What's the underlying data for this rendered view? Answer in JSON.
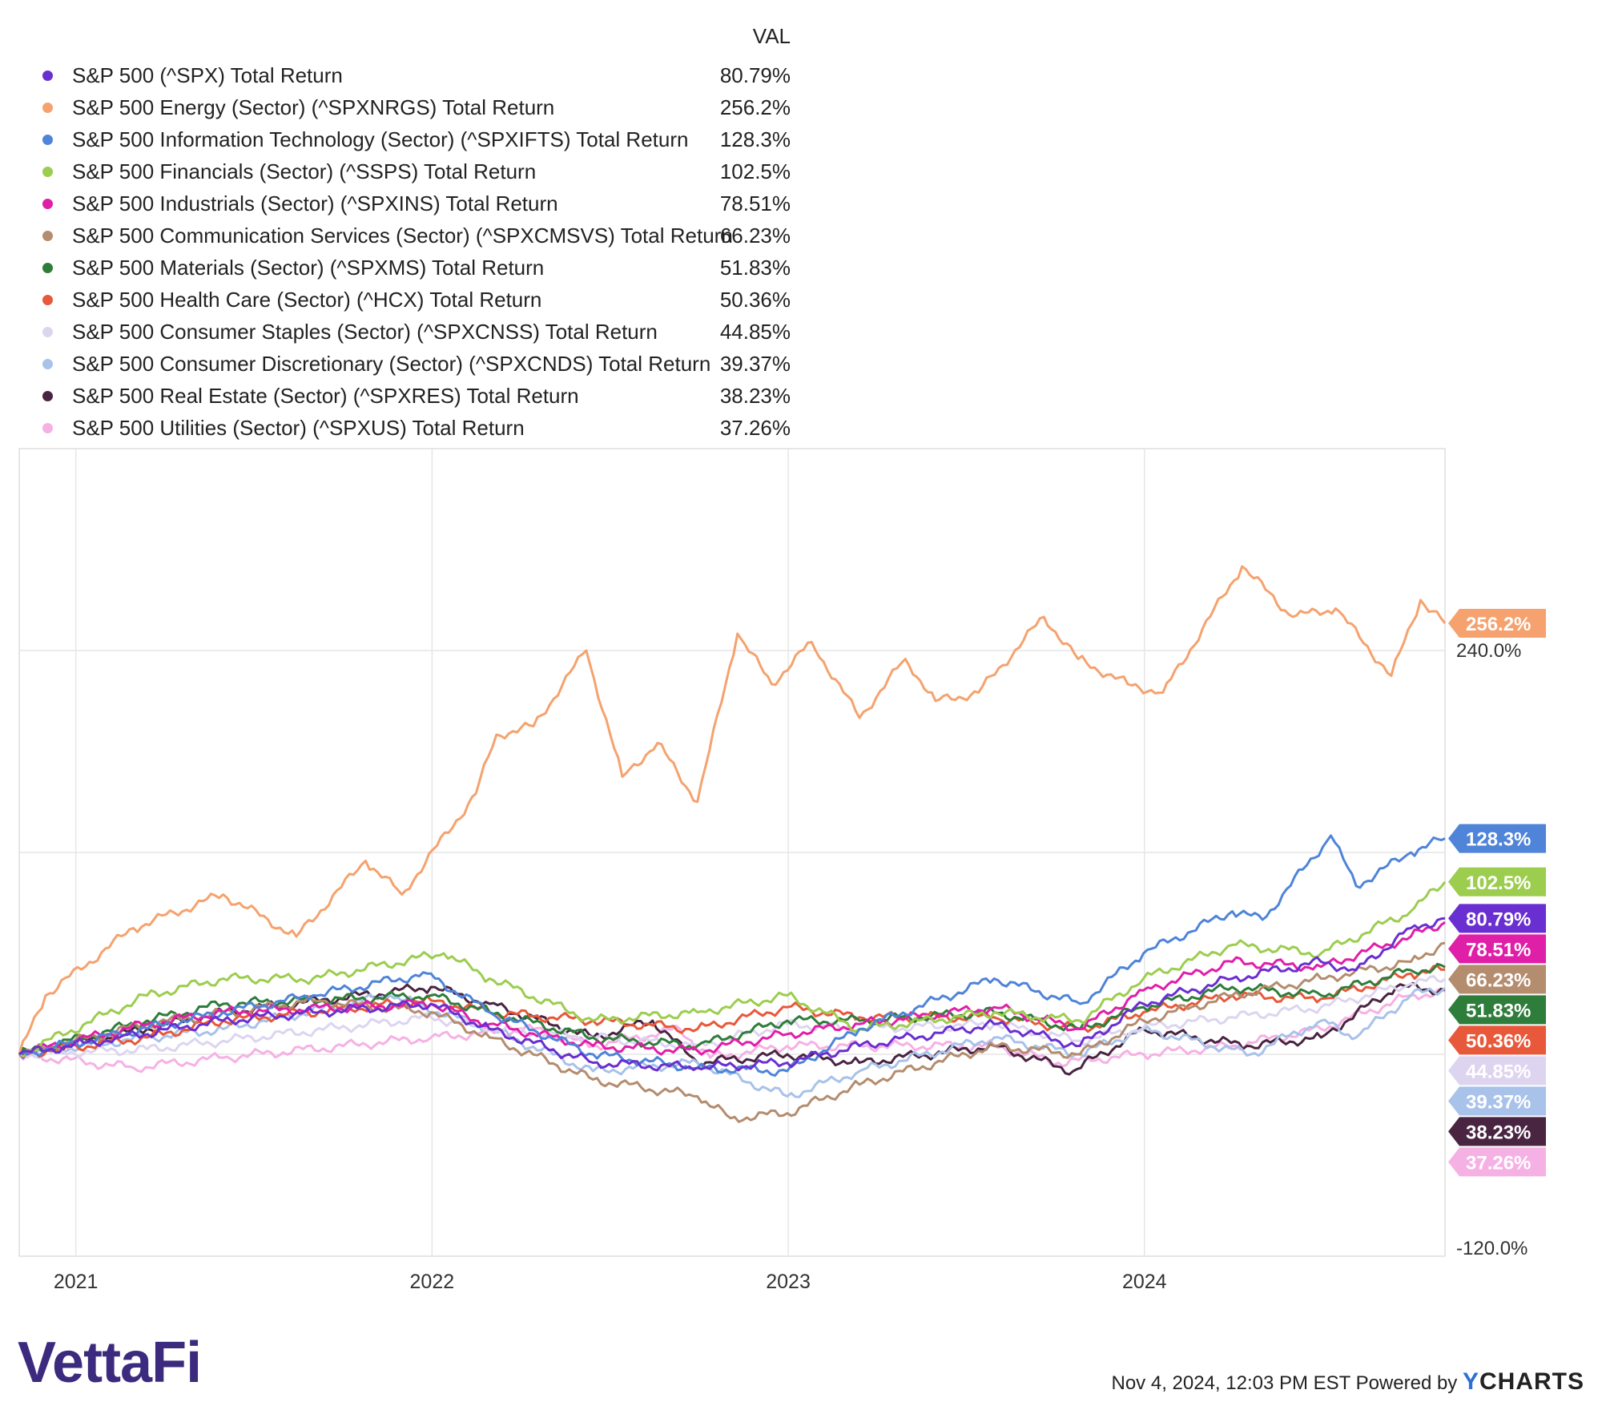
{
  "legend": {
    "header": "VAL"
  },
  "chart_data": {
    "type": "line",
    "x_ticks": [
      "2021",
      "2022",
      "2023",
      "2024"
    ],
    "y_tick_labels": [
      "240.0%",
      "-120.0%"
    ],
    "series": [
      {
        "name": "S&P 500 (^SPX) Total Return",
        "value_label": "80.79%",
        "end_value": 80.79,
        "color": "#6a2fd0",
        "label_text_color": "#ffffff",
        "points": [
          [
            "2020-11-04",
            0
          ],
          [
            "2021-02-15",
            10
          ],
          [
            "2021-06-01",
            20
          ],
          [
            "2021-09-01",
            25
          ],
          [
            "2021-12-31",
            30
          ],
          [
            "2022-03-01",
            15
          ],
          [
            "2022-06-15",
            -5
          ],
          [
            "2022-09-30",
            -8
          ],
          [
            "2022-12-31",
            -5
          ],
          [
            "2023-03-15",
            5
          ],
          [
            "2023-07-31",
            18
          ],
          [
            "2023-10-27",
            5
          ],
          [
            "2023-12-31",
            30
          ],
          [
            "2024-03-31",
            45
          ],
          [
            "2024-06-30",
            55
          ],
          [
            "2024-08-05",
            50
          ],
          [
            "2024-09-30",
            75
          ],
          [
            "2024-11-04",
            80.79
          ]
        ]
      },
      {
        "name": "S&P 500 Energy (Sector) (^SPXNRGS) Total Return",
        "value_label": "256.2%",
        "end_value": 256.2,
        "color": "#f5a26e",
        "label_text_color": "#ffffff",
        "points": [
          [
            "2020-11-04",
            0
          ],
          [
            "2020-12-01",
            35
          ],
          [
            "2021-03-01",
            75
          ],
          [
            "2021-06-01",
            95
          ],
          [
            "2021-08-15",
            70
          ],
          [
            "2021-10-25",
            115
          ],
          [
            "2021-12-01",
            95
          ],
          [
            "2022-02-15",
            155
          ],
          [
            "2022-03-08",
            190
          ],
          [
            "2022-04-15",
            195
          ],
          [
            "2022-06-08",
            240
          ],
          [
            "2022-07-15",
            165
          ],
          [
            "2022-08-20",
            185
          ],
          [
            "2022-09-30",
            150
          ],
          [
            "2022-11-10",
            250
          ],
          [
            "2022-12-15",
            220
          ],
          [
            "2023-01-25",
            245
          ],
          [
            "2023-03-15",
            200
          ],
          [
            "2023-05-01",
            235
          ],
          [
            "2023-06-01",
            210
          ],
          [
            "2023-07-15",
            215
          ],
          [
            "2023-09-20",
            260
          ],
          [
            "2023-10-25",
            235
          ],
          [
            "2023-12-15",
            220
          ],
          [
            "2024-01-20",
            215
          ],
          [
            "2024-04-10",
            290
          ],
          [
            "2024-06-01",
            260
          ],
          [
            "2024-07-15",
            265
          ],
          [
            "2024-09-10",
            225
          ],
          [
            "2024-10-10",
            270
          ],
          [
            "2024-11-04",
            256.2
          ]
        ]
      },
      {
        "name": "S&P 500 Information Technology (Sector) (^SPXIFTS) Total Return",
        "value_label": "128.3%",
        "end_value": 128.3,
        "color": "#4f84d8",
        "label_text_color": "#ffffff",
        "points": [
          [
            "2020-11-04",
            0
          ],
          [
            "2021-02-15",
            12
          ],
          [
            "2021-06-01",
            25
          ],
          [
            "2021-09-01",
            35
          ],
          [
            "2021-12-27",
            48
          ],
          [
            "2022-03-01",
            25
          ],
          [
            "2022-06-15",
            0
          ],
          [
            "2022-09-30",
            -8
          ],
          [
            "2022-12-31",
            -10
          ],
          [
            "2023-03-15",
            15
          ],
          [
            "2023-07-31",
            45
          ],
          [
            "2023-10-27",
            30
          ],
          [
            "2023-12-31",
            60
          ],
          [
            "2024-03-31",
            85
          ],
          [
            "2024-05-01",
            80
          ],
          [
            "2024-07-10",
            130
          ],
          [
            "2024-08-05",
            100
          ],
          [
            "2024-09-30",
            120
          ],
          [
            "2024-11-04",
            128.3
          ]
        ]
      },
      {
        "name": "S&P 500 Financials (Sector) (^SSPS) Total Return",
        "value_label": "102.5%",
        "end_value": 102.5,
        "color": "#9ccd4f",
        "label_text_color": "#ffffff",
        "points": [
          [
            "2020-11-04",
            0
          ],
          [
            "2021-03-15",
            35
          ],
          [
            "2021-06-01",
            45
          ],
          [
            "2021-09-01",
            45
          ],
          [
            "2022-01-13",
            60
          ],
          [
            "2022-03-01",
            45
          ],
          [
            "2022-06-15",
            20
          ],
          [
            "2022-09-30",
            25
          ],
          [
            "2022-12-31",
            35
          ],
          [
            "2023-03-15",
            15
          ],
          [
            "2023-07-31",
            25
          ],
          [
            "2023-10-27",
            20
          ],
          [
            "2023-12-31",
            45
          ],
          [
            "2024-03-31",
            65
          ],
          [
            "2024-06-30",
            60
          ],
          [
            "2024-09-30",
            85
          ],
          [
            "2024-11-04",
            102.5
          ]
        ]
      },
      {
        "name": "S&P 500 Industrials (Sector) (^SPXINS) Total Return",
        "value_label": "78.51%",
        "end_value": 78.51,
        "color": "#e01fa8",
        "label_text_color": "#ffffff",
        "points": [
          [
            "2020-11-04",
            0
          ],
          [
            "2021-03-15",
            18
          ],
          [
            "2021-06-01",
            25
          ],
          [
            "2021-12-31",
            30
          ],
          [
            "2022-03-01",
            18
          ],
          [
            "2022-06-15",
            5
          ],
          [
            "2022-09-30",
            2
          ],
          [
            "2022-12-31",
            12
          ],
          [
            "2023-03-15",
            18
          ],
          [
            "2023-07-31",
            28
          ],
          [
            "2023-10-27",
            15
          ],
          [
            "2023-12-31",
            38
          ],
          [
            "2024-03-31",
            55
          ],
          [
            "2024-06-30",
            52
          ],
          [
            "2024-09-30",
            70
          ],
          [
            "2024-11-04",
            78.51
          ]
        ]
      },
      {
        "name": "S&P 500 Communication Services (Sector) (^SPXCMSVS) Total Return",
        "value_label": "66.23%",
        "end_value": 66.23,
        "color": "#b48c6e",
        "label_text_color": "#ffffff",
        "points": [
          [
            "2020-11-04",
            0
          ],
          [
            "2021-03-15",
            18
          ],
          [
            "2021-09-01",
            32
          ],
          [
            "2021-12-31",
            25
          ],
          [
            "2022-03-01",
            10
          ],
          [
            "2022-06-15",
            -15
          ],
          [
            "2022-09-30",
            -25
          ],
          [
            "2022-11-03",
            -38
          ],
          [
            "2022-12-31",
            -35
          ],
          [
            "2023-03-15",
            -18
          ],
          [
            "2023-07-31",
            5
          ],
          [
            "2023-10-27",
            0
          ],
          [
            "2023-12-31",
            20
          ],
          [
            "2024-03-31",
            35
          ],
          [
            "2024-06-30",
            45
          ],
          [
            "2024-09-30",
            55
          ],
          [
            "2024-11-04",
            66.23
          ]
        ]
      },
      {
        "name": "S&P 500 Materials (Sector) (^SPXMS) Total Return",
        "value_label": "51.83%",
        "end_value": 51.83,
        "color": "#2e7d3a",
        "label_text_color": "#ffffff",
        "points": [
          [
            "2020-11-04",
            0
          ],
          [
            "2021-03-15",
            20
          ],
          [
            "2021-06-01",
            30
          ],
          [
            "2021-12-31",
            35
          ],
          [
            "2022-03-01",
            25
          ],
          [
            "2022-06-15",
            10
          ],
          [
            "2022-09-30",
            5
          ],
          [
            "2022-12-31",
            20
          ],
          [
            "2023-03-15",
            20
          ],
          [
            "2023-07-31",
            25
          ],
          [
            "2023-10-27",
            15
          ],
          [
            "2023-12-31",
            28
          ],
          [
            "2024-03-31",
            40
          ],
          [
            "2024-06-30",
            35
          ],
          [
            "2024-09-30",
            50
          ],
          [
            "2024-11-04",
            51.83
          ]
        ]
      },
      {
        "name": "S&P 500 Health Care (Sector) (^HCX) Total Return",
        "value_label": "50.36%",
        "end_value": 50.36,
        "color": "#e8583a",
        "label_text_color": "#ffffff",
        "points": [
          [
            "2020-11-04",
            0
          ],
          [
            "2021-03-15",
            10
          ],
          [
            "2021-06-01",
            20
          ],
          [
            "2021-12-31",
            32
          ],
          [
            "2022-03-01",
            25
          ],
          [
            "2022-06-15",
            20
          ],
          [
            "2022-09-30",
            15
          ],
          [
            "2022-12-31",
            28
          ],
          [
            "2023-03-15",
            22
          ],
          [
            "2023-07-31",
            22
          ],
          [
            "2023-10-27",
            15
          ],
          [
            "2023-12-31",
            25
          ],
          [
            "2024-03-31",
            35
          ],
          [
            "2024-06-30",
            33
          ],
          [
            "2024-09-30",
            48
          ],
          [
            "2024-11-04",
            50.36
          ]
        ]
      },
      {
        "name": "S&P 500 Consumer Staples (Sector) (^SPXCNSS) Total Return",
        "value_label": "44.85%",
        "end_value": 44.85,
        "color": "#ddd5f0",
        "label_text_color": "#ffffff",
        "points": [
          [
            "2020-11-04",
            0
          ],
          [
            "2021-03-15",
            3
          ],
          [
            "2021-06-01",
            8
          ],
          [
            "2021-12-31",
            22
          ],
          [
            "2022-03-01",
            15
          ],
          [
            "2022-06-15",
            10
          ],
          [
            "2022-09-30",
            5
          ],
          [
            "2022-12-31",
            18
          ],
          [
            "2023-03-15",
            15
          ],
          [
            "2023-07-31",
            18
          ],
          [
            "2023-10-27",
            8
          ],
          [
            "2023-12-31",
            16
          ],
          [
            "2024-03-31",
            22
          ],
          [
            "2024-06-30",
            28
          ],
          [
            "2024-09-30",
            42
          ],
          [
            "2024-11-04",
            44.85
          ]
        ]
      },
      {
        "name": "S&P 500 Consumer Discretionary (Sector) (^SPXCNDS) Total Return",
        "value_label": "39.37%",
        "end_value": 39.37,
        "color": "#a8c2ea",
        "label_text_color": "#ffffff",
        "points": [
          [
            "2020-11-04",
            0
          ],
          [
            "2021-03-15",
            10
          ],
          [
            "2021-06-01",
            15
          ],
          [
            "2021-11-19",
            35
          ],
          [
            "2022-03-01",
            15
          ],
          [
            "2022-06-15",
            -10
          ],
          [
            "2022-09-30",
            -5
          ],
          [
            "2022-12-31",
            -25
          ],
          [
            "2023-03-15",
            -10
          ],
          [
            "2023-07-31",
            10
          ],
          [
            "2023-10-27",
            0
          ],
          [
            "2023-12-31",
            15
          ],
          [
            "2024-04-19",
            0
          ],
          [
            "2024-06-30",
            20
          ],
          [
            "2024-08-05",
            10
          ],
          [
            "2024-09-30",
            35
          ],
          [
            "2024-11-04",
            39.37
          ]
        ]
      },
      {
        "name": "S&P 500 Real Estate (Sector) (^SPXRES) Total Return",
        "value_label": "38.23%",
        "end_value": 38.23,
        "color": "#4a2542",
        "label_text_color": "#ffffff",
        "points": [
          [
            "2020-11-04",
            0
          ],
          [
            "2021-03-15",
            15
          ],
          [
            "2021-06-01",
            25
          ],
          [
            "2021-12-31",
            40
          ],
          [
            "2022-03-01",
            30
          ],
          [
            "2022-06-15",
            10
          ],
          [
            "2022-08-15",
            20
          ],
          [
            "2022-09-30",
            -5
          ],
          [
            "2022-12-31",
            0
          ],
          [
            "2023-03-15",
            -5
          ],
          [
            "2023-07-31",
            5
          ],
          [
            "2023-10-20",
            -10
          ],
          [
            "2023-12-31",
            15
          ],
          [
            "2024-04-15",
            5
          ],
          [
            "2024-06-30",
            10
          ],
          [
            "2024-09-15",
            40
          ],
          [
            "2024-11-04",
            38.23
          ]
        ]
      },
      {
        "name": "S&P 500 Utilities (Sector) (^SPXUS) Total Return",
        "value_label": "37.26%",
        "end_value": 37.26,
        "color": "#f6b1e4",
        "label_text_color": "#ffffff",
        "points": [
          [
            "2020-11-04",
            0
          ],
          [
            "2021-03-01",
            -8
          ],
          [
            "2021-06-01",
            -2
          ],
          [
            "2021-12-31",
            10
          ],
          [
            "2022-04-15",
            15
          ],
          [
            "2022-06-15",
            5
          ],
          [
            "2022-09-12",
            15
          ],
          [
            "2022-10-13",
            -2
          ],
          [
            "2022-12-31",
            5
          ],
          [
            "2023-03-15",
            5
          ],
          [
            "2023-07-31",
            5
          ],
          [
            "2023-10-05",
            -5
          ],
          [
            "2023-12-31",
            0
          ],
          [
            "2024-03-31",
            5
          ],
          [
            "2024-06-30",
            15
          ],
          [
            "2024-09-30",
            35
          ],
          [
            "2024-11-04",
            37.26
          ]
        ]
      }
    ]
  },
  "footer": {
    "logo_text": "VettaFi",
    "timestamp_text": "Nov 4, 2024, 12:03 PM EST Powered by",
    "brand_y": "Y",
    "brand_rest": "CHARTS"
  }
}
